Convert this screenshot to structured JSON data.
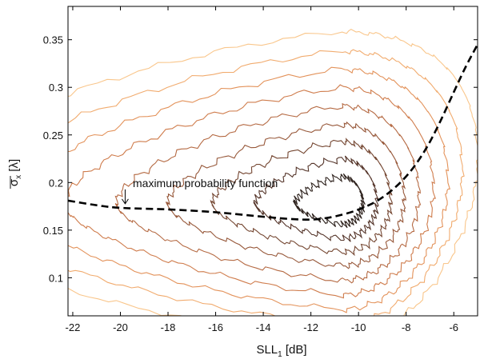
{
  "chart_data": {
    "type": "contour",
    "xlabel": "SLL",
    "xlabel_sub": "1",
    "xlabel_unit": " [dB]",
    "ylabel": "σ",
    "ylabel_sub": "x",
    "ylabel_unit": " [λ]",
    "xlim": [
      -22.2,
      -5
    ],
    "ylim": [
      0.06,
      0.385
    ],
    "xticks": [
      -22,
      -20,
      -18,
      -16,
      -14,
      -12,
      -10,
      -8,
      -6
    ],
    "yticks": [
      0.1,
      0.15,
      0.2,
      0.25,
      0.3,
      0.35
    ],
    "grid": false,
    "annotation": {
      "text": "maximum probability function",
      "arrow_to": [
        -19.8,
        0.176
      ]
    },
    "max_probability_curve": {
      "style": "dashed",
      "color": "#000000",
      "points": [
        [
          -22.2,
          0.181
        ],
        [
          -21,
          0.176
        ],
        [
          -20,
          0.173
        ],
        [
          -18,
          0.172
        ],
        [
          -16,
          0.169
        ],
        [
          -14,
          0.164
        ],
        [
          -12.6,
          0.161
        ],
        [
          -11.8,
          0.161
        ],
        [
          -11,
          0.164
        ],
        [
          -10,
          0.171
        ],
        [
          -9,
          0.183
        ],
        [
          -8,
          0.205
        ],
        [
          -7.2,
          0.233
        ],
        [
          -6.6,
          0.262
        ],
        [
          -6,
          0.295
        ],
        [
          -5.5,
          0.322
        ],
        [
          -5,
          0.345
        ]
      ]
    },
    "contours": {
      "center": [
        -10.7,
        0.178
      ],
      "levels": [
        {
          "color": "#f9c68b",
          "radius": 1.0
        },
        {
          "color": "#f1ab6e",
          "radius": 0.88
        },
        {
          "color": "#e3925a",
          "radius": 0.77
        },
        {
          "color": "#cf7c4c",
          "radius": 0.66
        },
        {
          "color": "#b56a43",
          "radius": 0.55
        },
        {
          "color": "#97583a",
          "radius": 0.44
        },
        {
          "color": "#754732",
          "radius": 0.34
        },
        {
          "color": "#55352a",
          "radius": 0.24
        },
        {
          "color": "#2e221d",
          "radius": 0.14
        }
      ]
    }
  }
}
